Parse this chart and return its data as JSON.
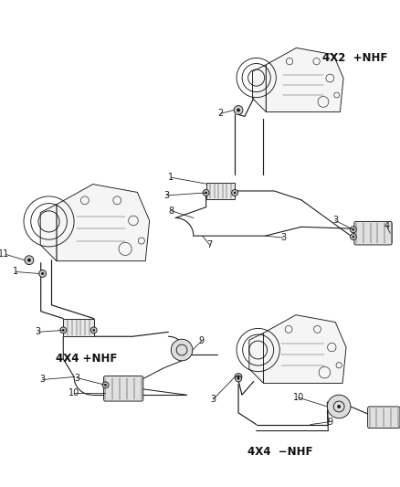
{
  "bg_color": "#ffffff",
  "fig_width": 4.39,
  "fig_height": 5.33,
  "dpi": 100,
  "labels": {
    "top_right_tag": "4X2  +NHF",
    "bottom_left_tag": "4X4 +NHF",
    "bottom_right_tag": "4X4  −NHF"
  },
  "line_color": "#1a1a1a",
  "text_color": "#111111",
  "tag_fontsize": 8.5,
  "callout_fontsize": 7,
  "lw": 0.65,
  "engine_fill": "#f8f8f8",
  "engine_stroke": "#1a1a1a"
}
